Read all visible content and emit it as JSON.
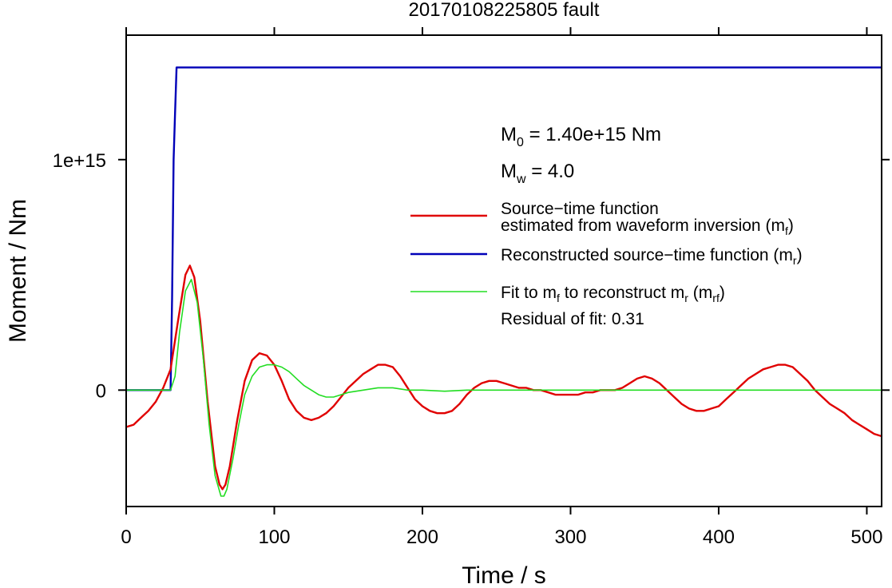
{
  "chart_data": {
    "type": "line",
    "title": "20170108225805 fault",
    "xlabel": "Time / s",
    "ylabel": "Moment / Nm",
    "xlim": [
      0,
      510
    ],
    "ylim": [
      -505000000000000,
      1540000000000000
    ],
    "xticks": [
      0,
      100,
      200,
      300,
      400,
      500
    ],
    "xtick_labels": [
      "0",
      "100",
      "200",
      "300",
      "400",
      "500"
    ],
    "yticks": [
      0,
      1000000000000000
    ],
    "ytick_labels": [
      "0",
      "1e+15"
    ],
    "grid": false,
    "legend_position": "upper-right",
    "annotations": {
      "m0_prefix": "M",
      "m0_sub": "0",
      "m0_value": " = 1.40e+15 Nm",
      "mw_prefix": "M",
      "mw_sub": "w",
      "mw_value": " = 4.0",
      "residual": "Residual of fit: 0.31"
    },
    "legend": [
      {
        "color": "#e00000",
        "width": 2.4,
        "text_line1": "Source−time function",
        "text_line2_pre": "estimated from waveform inversion (m",
        "text_line2_sub": "f",
        "text_line2_post": ")"
      },
      {
        "color": "#0000b8",
        "width": 2.4,
        "text_pre": "Reconstructed source−time function (m",
        "text_sub": "r",
        "text_post": ")"
      },
      {
        "color": "#22dd22",
        "width": 1.6,
        "text_pre": "Fit to m",
        "text_sub": "f",
        "text_mid": " to reconstruct m",
        "text_sub2": "r",
        "text_post_pre": " (m",
        "text_sub3": "rf",
        "text_post": ")"
      }
    ],
    "series": [
      {
        "name": "Source−time function estimated from waveform inversion (mf)",
        "color": "#e00000",
        "x": [
          0,
          5,
          10,
          15,
          20,
          25,
          30,
          35,
          40,
          43,
          46,
          50,
          55,
          60,
          63,
          65,
          67,
          70,
          75,
          80,
          85,
          90,
          95,
          100,
          105,
          110,
          115,
          120,
          125,
          130,
          135,
          140,
          145,
          150,
          155,
          160,
          165,
          170,
          175,
          180,
          185,
          190,
          195,
          200,
          205,
          210,
          215,
          220,
          225,
          230,
          235,
          240,
          245,
          250,
          255,
          260,
          265,
          270,
          275,
          280,
          285,
          290,
          295,
          300,
          305,
          310,
          315,
          320,
          325,
          330,
          335,
          340,
          345,
          350,
          355,
          360,
          365,
          370,
          375,
          380,
          385,
          390,
          395,
          400,
          405,
          410,
          415,
          420,
          425,
          430,
          435,
          440,
          445,
          450,
          455,
          460,
          465,
          470,
          475,
          480,
          485,
          490,
          495,
          500,
          505,
          510
        ],
        "y": [
          -160000000000000,
          -150000000000000,
          -120000000000000,
          -90000000000000,
          -50000000000000,
          10000000000000,
          90000000000000,
          300000000000000,
          500000000000000,
          540000000000000,
          490000000000000,
          300000000000000,
          -50000000000000,
          -330000000000000,
          -410000000000000,
          -430000000000000,
          -410000000000000,
          -330000000000000,
          -130000000000000,
          40000000000000,
          130000000000000,
          160000000000000,
          150000000000000,
          110000000000000,
          40000000000000,
          -40000000000000,
          -90000000000000,
          -120000000000000,
          -130000000000000,
          -120000000000000,
          -100000000000000,
          -70000000000000,
          -30000000000000,
          10000000000000,
          40000000000000,
          70000000000000,
          90000000000000,
          110000000000000,
          110000000000000,
          100000000000000,
          60000000000000,
          10000000000000,
          -40000000000000,
          -70000000000000,
          -90000000000000,
          -100000000000000,
          -100000000000000,
          -90000000000000,
          -60000000000000,
          -20000000000000,
          10000000000000,
          30000000000000,
          40000000000000,
          40000000000000,
          30000000000000,
          20000000000000,
          10000000000000,
          10000000000000,
          0,
          0,
          -10000000000000,
          -20000000000000,
          -20000000000000,
          -20000000000000,
          -20000000000000,
          -10000000000000,
          -10000000000000,
          0,
          0,
          0,
          10000000000000,
          30000000000000,
          50000000000000,
          60000000000000,
          50000000000000,
          30000000000000,
          0,
          -30000000000000,
          -60000000000000,
          -80000000000000,
          -90000000000000,
          -90000000000000,
          -80000000000000,
          -70000000000000,
          -40000000000000,
          -10000000000000,
          20000000000000,
          50000000000000,
          70000000000000,
          90000000000000,
          100000000000000,
          110000000000000,
          110000000000000,
          100000000000000,
          70000000000000,
          40000000000000,
          0,
          -30000000000000,
          -60000000000000,
          -80000000000000,
          -100000000000000,
          -130000000000000,
          -150000000000000,
          -170000000000000,
          -190000000000000,
          -200000000000000
        ]
      },
      {
        "name": "Reconstructed source−time function (mr)",
        "color": "#0000b8",
        "x": [
          0,
          30,
          31,
          32,
          33,
          34,
          510
        ],
        "y": [
          0,
          0,
          400000000000000,
          1000000000000000,
          1200000000000000,
          1400000000000000,
          1400000000000000
        ]
      },
      {
        "name": "Fit to mf to reconstruct mr (mrf)",
        "color": "#22dd22",
        "x": [
          0,
          30,
          33,
          36,
          40,
          44,
          48,
          52,
          56,
          60,
          64,
          66,
          68,
          72,
          76,
          80,
          85,
          90,
          95,
          100,
          105,
          110,
          115,
          120,
          125,
          130,
          135,
          140,
          145,
          150,
          160,
          170,
          180,
          190,
          200,
          215,
          230,
          250,
          300,
          400,
          510
        ],
        "y": [
          0,
          0,
          60000000000000,
          250000000000000,
          430000000000000,
          480000000000000,
          380000000000000,
          140000000000000,
          -150000000000000,
          -370000000000000,
          -460000000000000,
          -460000000000000,
          -430000000000000,
          -300000000000000,
          -150000000000000,
          -20000000000000,
          60000000000000,
          100000000000000,
          110000000000000,
          110000000000000,
          100000000000000,
          80000000000000,
          50000000000000,
          20000000000000,
          0,
          -20000000000000,
          -30000000000000,
          -30000000000000,
          -20000000000000,
          -10000000000000,
          0,
          10000000000000,
          10000000000000,
          0,
          0,
          -5000000000000,
          0,
          0,
          0,
          0,
          0
        ]
      }
    ]
  }
}
